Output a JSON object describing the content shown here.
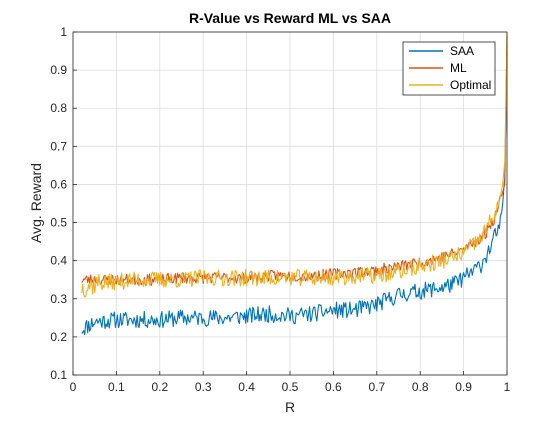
{
  "colors": {
    "grid": "#dcdcdc",
    "axis": "#262626",
    "background": "#ffffff"
  },
  "chart_data": {
    "type": "line",
    "title": "R-Value vs Reward ML vs SAA",
    "xlabel": "R",
    "ylabel": "Avg. Reward",
    "xlim": [
      0,
      1
    ],
    "ylim": [
      0.1,
      1
    ],
    "xticks": [
      "0",
      "0.1",
      "0.2",
      "0.3",
      "0.4",
      "0.5",
      "0.6",
      "0.7",
      "0.8",
      "0.9",
      "1"
    ],
    "yticks": [
      "0.1",
      "0.2",
      "0.3",
      "0.4",
      "0.5",
      "0.6",
      "0.7",
      "0.8",
      "0.9",
      "1"
    ],
    "grid": true,
    "legend_position": "top-right",
    "series": [
      {
        "name": "SAA",
        "color": "#0072BD",
        "x": [
          0.02,
          0.05,
          0.1,
          0.15,
          0.2,
          0.25,
          0.3,
          0.35,
          0.4,
          0.45,
          0.5,
          0.55,
          0.6,
          0.65,
          0.7,
          0.75,
          0.8,
          0.85,
          0.88,
          0.9,
          0.92,
          0.94,
          0.95,
          0.96,
          0.97,
          0.98,
          0.985,
          0.99,
          0.995,
          1.0
        ],
        "y": [
          0.22,
          0.24,
          0.245,
          0.245,
          0.245,
          0.25,
          0.25,
          0.25,
          0.255,
          0.26,
          0.255,
          0.26,
          0.27,
          0.27,
          0.285,
          0.31,
          0.32,
          0.33,
          0.34,
          0.355,
          0.37,
          0.39,
          0.41,
          0.43,
          0.46,
          0.48,
          0.5,
          0.55,
          0.62,
          0.95
        ]
      },
      {
        "name": "ML",
        "color": "#D95319",
        "x": [
          0.02,
          0.05,
          0.1,
          0.15,
          0.2,
          0.25,
          0.3,
          0.35,
          0.4,
          0.45,
          0.5,
          0.55,
          0.6,
          0.65,
          0.7,
          0.75,
          0.8,
          0.85,
          0.88,
          0.9,
          0.92,
          0.94,
          0.95,
          0.96,
          0.97,
          0.98,
          0.985,
          0.99,
          0.995,
          1.0
        ],
        "y": [
          0.35,
          0.35,
          0.35,
          0.35,
          0.35,
          0.355,
          0.355,
          0.355,
          0.355,
          0.36,
          0.36,
          0.36,
          0.365,
          0.37,
          0.375,
          0.385,
          0.395,
          0.41,
          0.42,
          0.43,
          0.445,
          0.46,
          0.47,
          0.49,
          0.51,
          0.54,
          0.56,
          0.58,
          0.6,
          0.99
        ]
      },
      {
        "name": "Optimal",
        "color": "#EDB120",
        "x": [
          0.02,
          0.05,
          0.1,
          0.15,
          0.2,
          0.25,
          0.3,
          0.35,
          0.4,
          0.45,
          0.5,
          0.55,
          0.6,
          0.65,
          0.7,
          0.75,
          0.8,
          0.85,
          0.88,
          0.9,
          0.92,
          0.94,
          0.95,
          0.96,
          0.97,
          0.98,
          0.985,
          0.99,
          0.995,
          1.0
        ],
        "y": [
          0.33,
          0.34,
          0.345,
          0.35,
          0.35,
          0.35,
          0.355,
          0.355,
          0.355,
          0.355,
          0.355,
          0.355,
          0.355,
          0.36,
          0.36,
          0.37,
          0.385,
          0.4,
          0.41,
          0.42,
          0.44,
          0.46,
          0.48,
          0.5,
          0.52,
          0.55,
          0.57,
          0.6,
          0.66,
          1.0
        ]
      }
    ]
  }
}
